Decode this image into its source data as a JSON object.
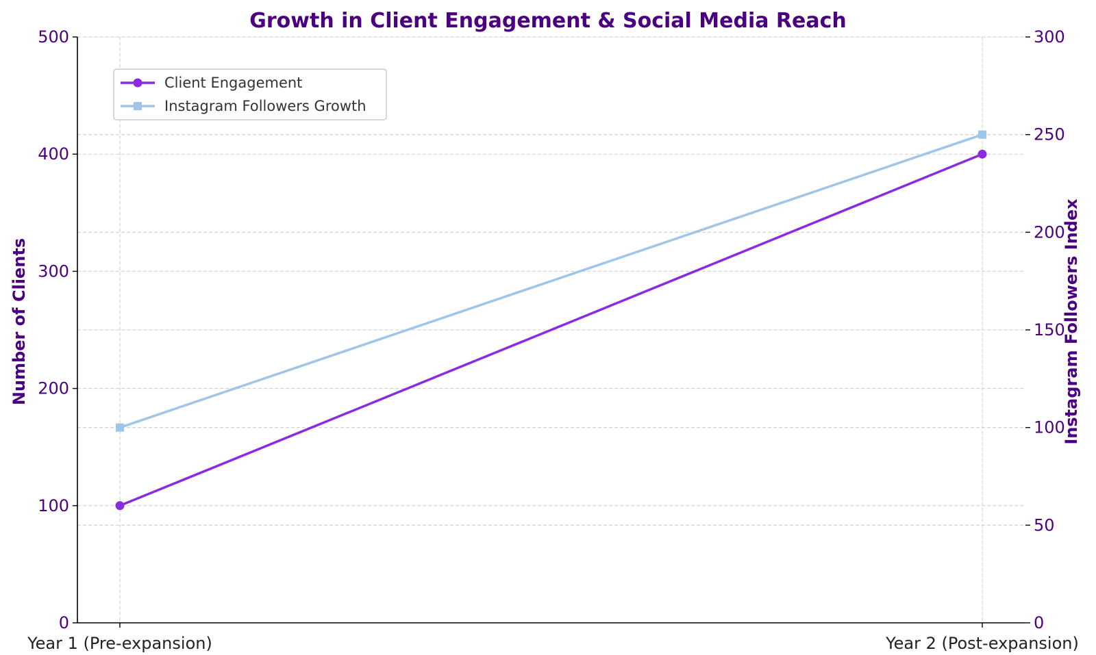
{
  "colors": {
    "title": "#4B0082",
    "axis_text": "#4B0082",
    "category_text": "#222222",
    "client_series": "#8A2BE2",
    "instagram_series": "#9FC5E8",
    "grid": "#CCCCCC",
    "axis_line": "#000000"
  },
  "chart_data": {
    "type": "line",
    "title": "Growth in Client Engagement & Social Media Reach",
    "categories": [
      "Year 1 (Pre-expansion)",
      "Year 2 (Post-expansion)"
    ],
    "grid": true,
    "legend_position": "upper-left",
    "y_left": {
      "label": "Number of Clients",
      "lim": [
        0,
        500
      ],
      "ticks": [
        0,
        100,
        200,
        300,
        400,
        500
      ]
    },
    "y_right": {
      "label": "Instagram Followers Index",
      "lim": [
        0,
        300
      ],
      "ticks": [
        0,
        50,
        100,
        150,
        200,
        250,
        300
      ]
    },
    "series": [
      {
        "name": "Client Engagement",
        "axis": "left",
        "marker": "circle",
        "values": [
          100,
          400
        ]
      },
      {
        "name": "Instagram Followers Growth",
        "axis": "right",
        "marker": "square",
        "values": [
          100,
          250
        ]
      }
    ]
  }
}
